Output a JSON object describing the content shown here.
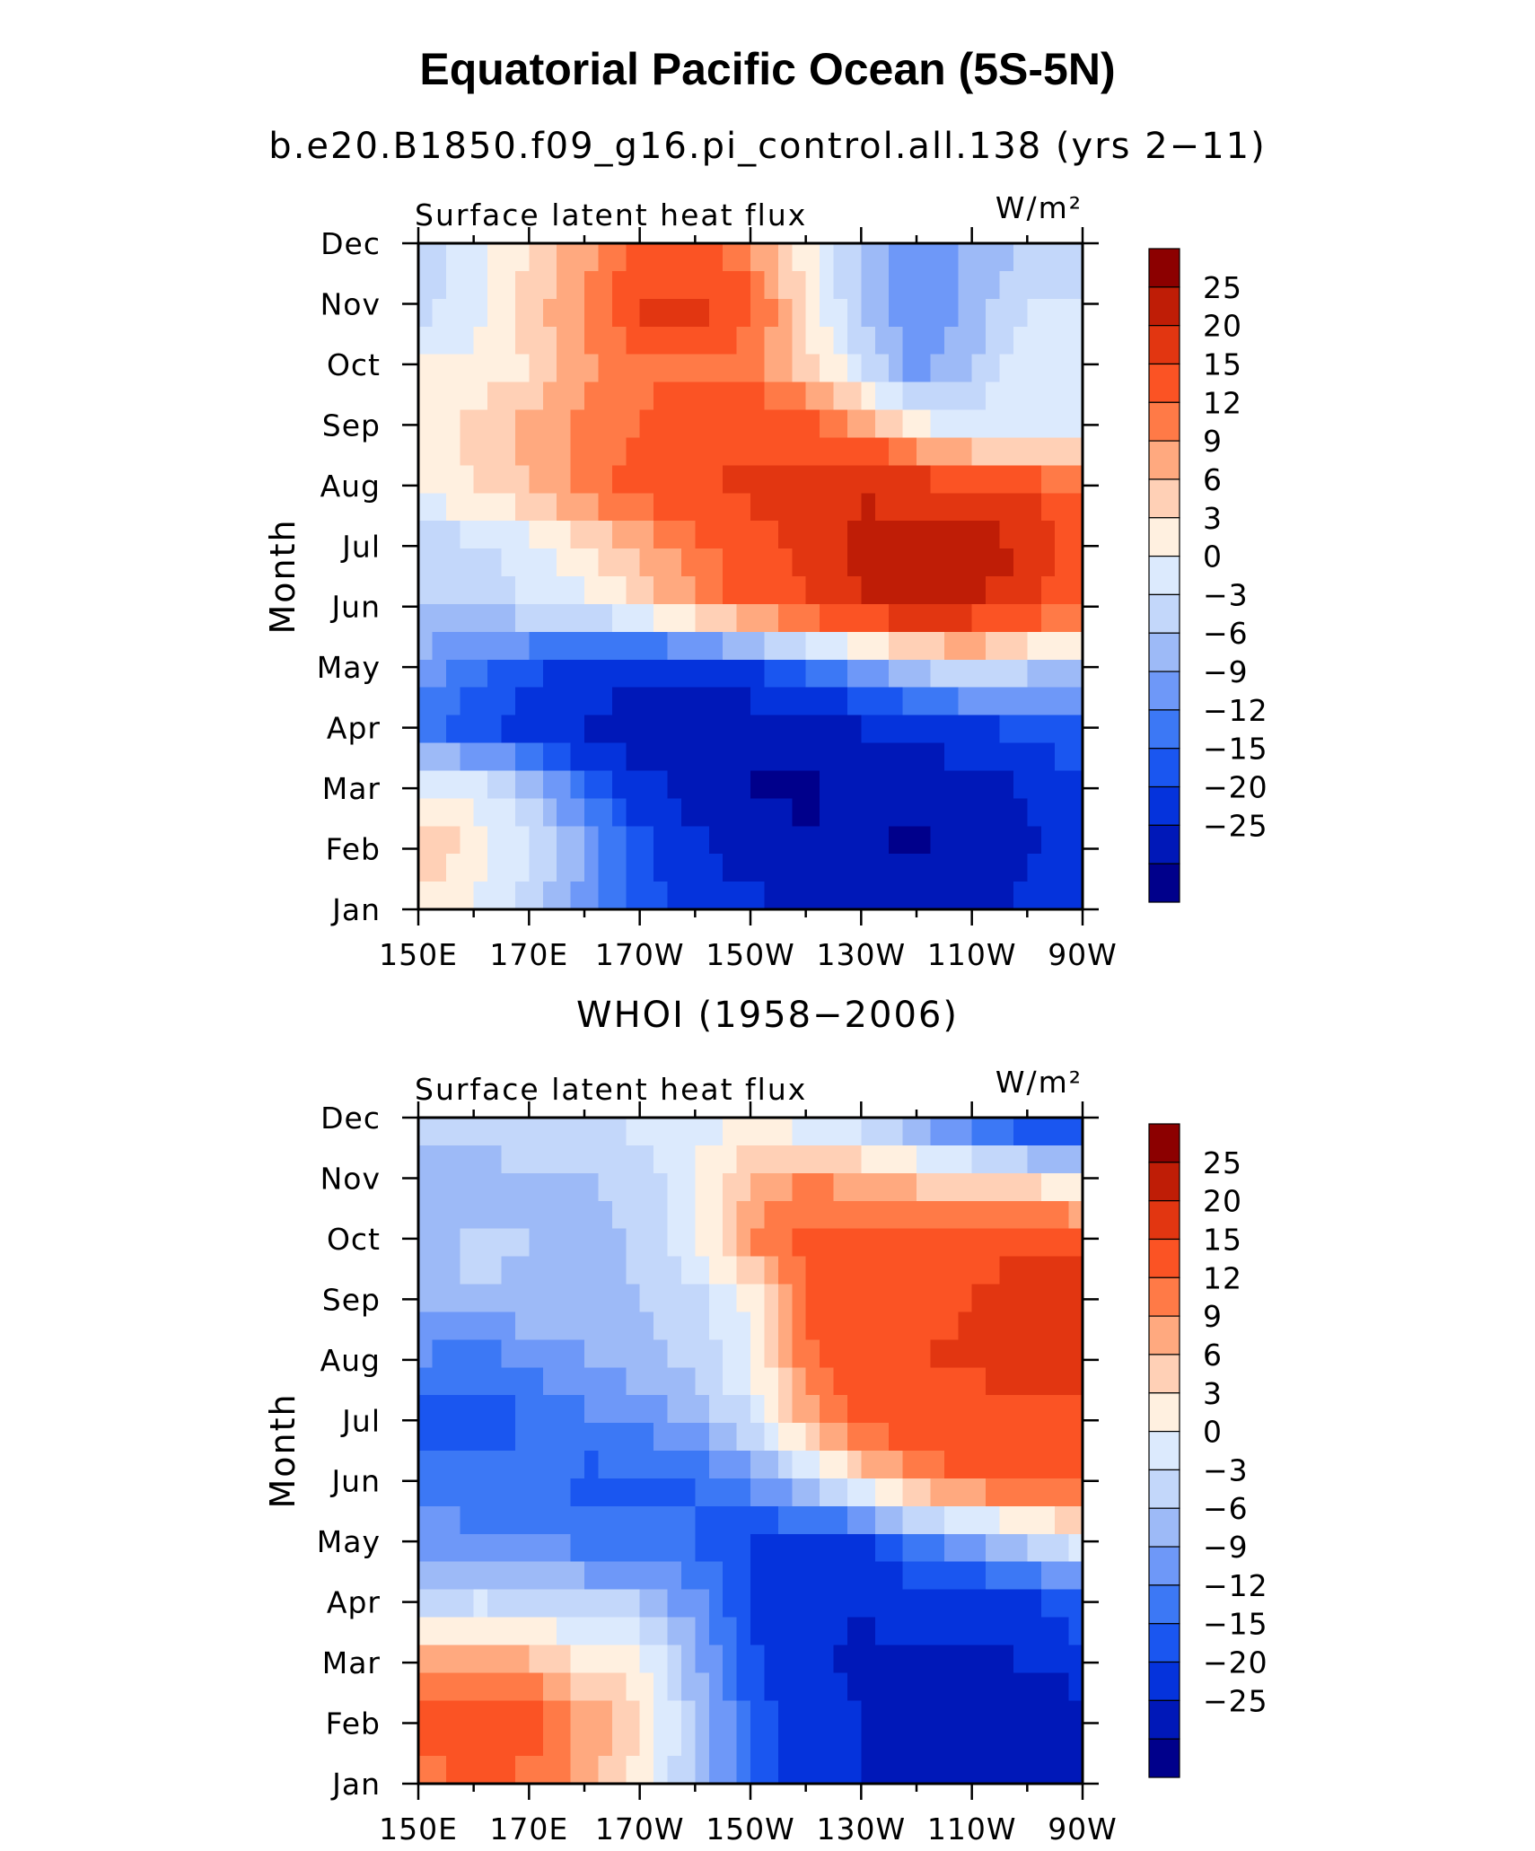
{
  "title": "Equatorial Pacific Ocean (5S-5N)",
  "chart_data": [
    {
      "type": "heatmap",
      "title": "b.e20.B1850.f09_g16.pi_control.all.138 (yrs 2−11)",
      "plot_label": "Surface latent heat flux",
      "units_label": "W/m²",
      "xlabel": "",
      "ylabel": "Month",
      "x_ticks": [
        "150E",
        "170E",
        "170W",
        "150W",
        "130W",
        "110W",
        "90W"
      ],
      "y_ticks": [
        "Jan",
        "Feb",
        "Mar",
        "Apr",
        "May",
        "Jun",
        "Jul",
        "Aug",
        "Sep",
        "Oct",
        "Nov",
        "Dec"
      ],
      "xlim": [
        150,
        270
      ],
      "colorbar_labels": [
        "25",
        "20",
        "15",
        "12",
        "9",
        "6",
        "3",
        "0",
        "−3",
        "−6",
        "−9",
        "−12",
        "−15",
        "−20",
        "−25"
      ],
      "grid": false,
      "x": [
        150,
        160,
        170,
        180,
        190,
        200,
        210,
        220,
        230,
        240,
        250,
        260,
        270
      ],
      "rows": [
        "Jan",
        "Feb",
        "Mar",
        "Apr",
        "May",
        "Jun",
        "Jul",
        "Aug",
        "Sep",
        "Oct",
        "Nov",
        "Dec"
      ],
      "z": [
        [
          5,
          3,
          -2,
          -8,
          -13,
          -17,
          -19,
          -21,
          -22,
          -22,
          -21,
          -19,
          -15
        ],
        [
          10,
          5,
          0,
          -6,
          -13,
          -19,
          -22,
          -24,
          -24,
          -26,
          -23,
          -21,
          -15
        ],
        [
          3,
          2,
          -3,
          -11,
          -18,
          -22,
          -25,
          -26,
          -24,
          -24,
          -22,
          -20,
          -15
        ],
        [
          -10,
          -14,
          -17,
          -20,
          -24,
          -25,
          -24,
          -22,
          -20,
          -18,
          -16,
          -14,
          -12
        ],
        [
          -7,
          -11,
          -14,
          -17,
          -19,
          -18,
          -15,
          -11,
          -6,
          -2,
          1,
          -2,
          -4
        ],
        [
          -3,
          -2,
          0,
          2,
          6,
          12,
          16,
          19,
          24,
          27,
          25,
          20,
          17
        ],
        [
          -2,
          -1,
          2,
          6,
          10,
          14,
          18,
          22,
          27,
          28,
          27,
          26,
          16
        ],
        [
          5,
          6,
          9,
          13,
          17,
          19,
          21,
          23,
          24,
          23,
          20,
          18,
          14
        ],
        [
          4,
          7,
          10,
          13,
          15,
          17,
          19,
          16,
          11,
          4,
          0,
          2,
          1
        ],
        [
          3,
          4,
          6,
          11,
          14,
          15,
          13,
          7,
          0,
          -8,
          -3,
          3,
          3
        ],
        [
          -2,
          2,
          8,
          12,
          21,
          22,
          16,
          6,
          -4,
          -9,
          -5,
          0,
          1
        ],
        [
          -2,
          1,
          6,
          11,
          15,
          15,
          12,
          4,
          -4,
          -8,
          -5,
          -3,
          -3
        ]
      ]
    },
    {
      "type": "heatmap",
      "title": "WHOI (1958−2006)",
      "plot_label": "Surface latent heat flux",
      "units_label": "W/m²",
      "xlabel": "",
      "ylabel": "Month",
      "x_ticks": [
        "150E",
        "170E",
        "170W",
        "150W",
        "130W",
        "110W",
        "90W"
      ],
      "y_ticks": [
        "Jan",
        "Feb",
        "Mar",
        "Apr",
        "May",
        "Jun",
        "Jul",
        "Aug",
        "Sep",
        "Oct",
        "Nov",
        "Dec"
      ],
      "xlim": [
        150,
        270
      ],
      "colorbar_labels": [
        "25",
        "20",
        "15",
        "12",
        "9",
        "6",
        "3",
        "0",
        "−3",
        "−6",
        "−9",
        "−12",
        "−15",
        "−20",
        "−25"
      ],
      "grid": false,
      "x": [
        150,
        160,
        170,
        180,
        190,
        200,
        210,
        220,
        230,
        240,
        250,
        260,
        270
      ],
      "rows": [
        "Jan",
        "Feb",
        "Mar",
        "Apr",
        "May",
        "Jun",
        "Jul",
        "Aug",
        "Sep",
        "Oct",
        "Nov",
        "Dec"
      ],
      "z": [
        [
          12,
          16,
          14,
          10,
          4,
          -3,
          -12,
          -18,
          -20,
          -21,
          -22,
          -23,
          -24
        ],
        [
          17,
          18,
          17,
          12,
          6,
          -3,
          -12,
          -18,
          -20,
          -22,
          -24,
          -24,
          -23
        ],
        [
          10,
          12,
          10,
          6,
          4,
          -5,
          -14,
          -19,
          -21,
          -20,
          -22,
          -20,
          -17
        ],
        [
          -2,
          0,
          -1,
          -3,
          -3,
          -8,
          -16,
          -19,
          -20,
          -18,
          -18,
          -16,
          -12
        ],
        [
          -8,
          -8,
          -9,
          -10,
          -10,
          -12,
          -15,
          -17,
          -16,
          -10,
          -6,
          -2,
          2
        ],
        [
          -10,
          -11,
          -10,
          -13,
          -13,
          -12,
          -8,
          -2,
          6,
          12,
          16,
          16,
          17
        ],
        [
          -13,
          -14,
          -12,
          -10,
          -8,
          -5,
          0,
          10,
          16,
          18,
          18,
          19,
          19
        ],
        [
          -9,
          -11,
          -8,
          -6,
          -4,
          -2,
          3,
          14,
          19,
          20,
          21,
          21,
          21
        ],
        [
          -5,
          -3,
          -4,
          -6,
          -3,
          -1,
          4,
          15,
          18,
          17,
          20,
          22,
          24
        ],
        [
          -5,
          -2,
          -3,
          -5,
          -2,
          2,
          12,
          17,
          16,
          15,
          18,
          20,
          18
        ],
        [
          -6,
          -5,
          -4,
          -3,
          -2,
          3,
          9,
          12,
          10,
          8,
          6,
          4,
          2
        ],
        [
          -1,
          0,
          1,
          0,
          1,
          2,
          2,
          0,
          -3,
          -8,
          -14,
          -18,
          -20
        ]
      ]
    }
  ],
  "colors": {
    "scale": [
      "#00008b",
      "#0018b8",
      "#0533dc",
      "#1a56f0",
      "#3c78f5",
      "#6e98f8",
      "#9dbaf7",
      "#c3d7fa",
      "#dceafd",
      "#fff0e0",
      "#ffd0b6",
      "#ffa97f",
      "#ff7a47",
      "#fb5324",
      "#e23611",
      "#bf1d06",
      "#8c0000"
    ],
    "levels": [
      -25,
      -20,
      -15,
      -12,
      -9,
      -6,
      -3,
      0,
      3,
      6,
      9,
      12,
      15,
      20,
      25
    ]
  }
}
